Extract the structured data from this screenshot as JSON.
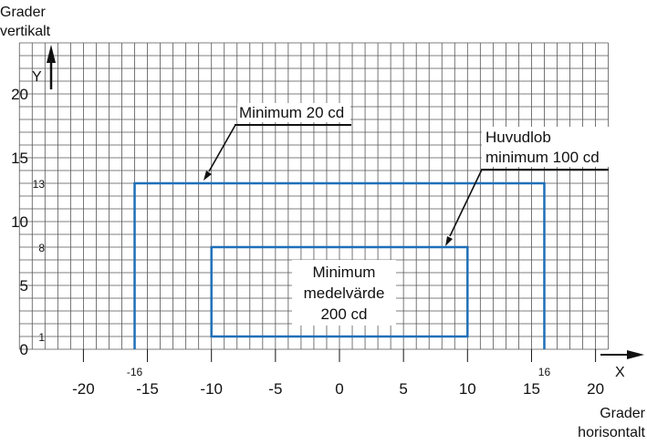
{
  "labels": {
    "y_axis_title_line1": "Grader",
    "y_axis_title_line2": "vertikalt",
    "x_axis_title_line1": "Grader",
    "x_axis_title_line2": "horisontalt",
    "y_axis_letter": "Y",
    "x_axis_letter": "X"
  },
  "chart_data": {
    "type": "diagram",
    "x_ticks": [
      -20,
      -15,
      -10,
      -5,
      0,
      5,
      10,
      15,
      20
    ],
    "y_ticks": [
      0,
      5,
      10,
      15,
      20
    ],
    "grid_step_x": 1,
    "grid_step_y": 1,
    "xlim": [
      -25,
      21
    ],
    "ylim": [
      0,
      24
    ],
    "colors": {
      "grid": "#555555",
      "region": "#1f6fb8",
      "axis": "#111111"
    },
    "regions": [
      {
        "id": "outer",
        "x_range": [
          -16,
          16
        ],
        "y_range": [
          0,
          13
        ],
        "open_bottom": true,
        "marks": {
          "left_x": "-16",
          "right_x": "16",
          "top_y": "13"
        }
      },
      {
        "id": "inner",
        "x_range": [
          -10,
          10
        ],
        "y_range": [
          1,
          8
        ],
        "open_bottom": false,
        "marks": {
          "top_y": "8",
          "bottom_y": "1"
        }
      }
    ],
    "annotations": {
      "outer": "Minimum 20 cd",
      "huvudlob_line1": "Huvudlob",
      "huvudlob_line2": "minimum 100 cd",
      "inner_line1": "Minimum",
      "inner_line2": "medelvärde",
      "inner_line3": "200 cd"
    }
  }
}
